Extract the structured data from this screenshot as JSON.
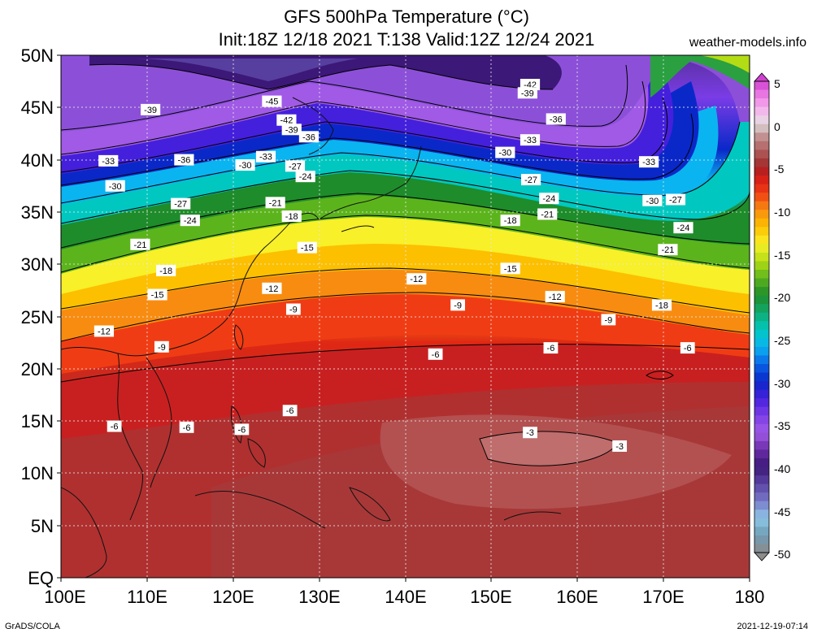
{
  "header": {
    "title_line1": "GFS 500hPa Temperature (°C)",
    "title_line2": "Init:18Z 12/18 2021 T:138 Valid:12Z 12/24 2021",
    "site": "weather-models.info"
  },
  "footer": {
    "credit": "GrADS/COLA",
    "timestamp": "2021-12-19-07:14"
  },
  "map": {
    "lat_labels": [
      "50N",
      "45N",
      "40N",
      "35N",
      "30N",
      "25N",
      "20N",
      "15N",
      "10N",
      "5N",
      "EQ"
    ],
    "lon_labels": [
      "100E",
      "110E",
      "120E",
      "130E",
      "140E",
      "150E",
      "160E",
      "170E",
      "180"
    ],
    "lat_range": [
      0,
      50
    ],
    "lon_range": [
      100,
      180
    ],
    "contour_labels": [
      {
        "text": "-45",
        "lon": 124.5,
        "lat": 45.6
      },
      {
        "text": "-42",
        "lon": 154.5,
        "lat": 47.2
      },
      {
        "text": "-39",
        "lon": 154.2,
        "lat": 46.4
      },
      {
        "text": "-39",
        "lon": 110.4,
        "lat": 44.8
      },
      {
        "text": "-42",
        "lon": 126.2,
        "lat": 43.8
      },
      {
        "text": "-39",
        "lon": 126.8,
        "lat": 42.9
      },
      {
        "text": "-36",
        "lon": 128.8,
        "lat": 42.2
      },
      {
        "text": "-36",
        "lon": 157.5,
        "lat": 43.9
      },
      {
        "text": "-33",
        "lon": 154.5,
        "lat": 41.9
      },
      {
        "text": "-33",
        "lon": 123.8,
        "lat": 40.3
      },
      {
        "text": "-30",
        "lon": 151.6,
        "lat": 40.7
      },
      {
        "text": "-33",
        "lon": 105.5,
        "lat": 39.9
      },
      {
        "text": "-36",
        "lon": 114.3,
        "lat": 40.0
      },
      {
        "text": "-30",
        "lon": 121.4,
        "lat": 39.5
      },
      {
        "text": "-27",
        "lon": 127.2,
        "lat": 39.4
      },
      {
        "text": "-24",
        "lon": 128.4,
        "lat": 38.4
      },
      {
        "text": "-33",
        "lon": 168.3,
        "lat": 39.8
      },
      {
        "text": "-27",
        "lon": 154.6,
        "lat": 38.1
      },
      {
        "text": "-30",
        "lon": 106.3,
        "lat": 37.5
      },
      {
        "text": "-24",
        "lon": 156.7,
        "lat": 36.3
      },
      {
        "text": "-30",
        "lon": 168.7,
        "lat": 36.1
      },
      {
        "text": "-27",
        "lon": 171.4,
        "lat": 36.2
      },
      {
        "text": "-27",
        "lon": 113.9,
        "lat": 35.8
      },
      {
        "text": "-21",
        "lon": 124.9,
        "lat": 35.9
      },
      {
        "text": "-21",
        "lon": 156.5,
        "lat": 34.8
      },
      {
        "text": "-18",
        "lon": 126.8,
        "lat": 34.6
      },
      {
        "text": "-18",
        "lon": 152.2,
        "lat": 34.2
      },
      {
        "text": "-24",
        "lon": 115.0,
        "lat": 34.2
      },
      {
        "text": "-24",
        "lon": 172.3,
        "lat": 33.5
      },
      {
        "text": "-21",
        "lon": 109.2,
        "lat": 31.9
      },
      {
        "text": "-15",
        "lon": 128.6,
        "lat": 31.6
      },
      {
        "text": "-21",
        "lon": 170.5,
        "lat": 31.4
      },
      {
        "text": "-18",
        "lon": 112.2,
        "lat": 29.4
      },
      {
        "text": "-15",
        "lon": 152.2,
        "lat": 29.6
      },
      {
        "text": "-12",
        "lon": 141.3,
        "lat": 28.6
      },
      {
        "text": "-12",
        "lon": 124.5,
        "lat": 27.7
      },
      {
        "text": "-15",
        "lon": 111.2,
        "lat": 27.1
      },
      {
        "text": "-12",
        "lon": 157.4,
        "lat": 26.9
      },
      {
        "text": "-9",
        "lon": 146.1,
        "lat": 26.1
      },
      {
        "text": "-9",
        "lon": 127.0,
        "lat": 25.7
      },
      {
        "text": "-18",
        "lon": 169.8,
        "lat": 26.1
      },
      {
        "text": "-9",
        "lon": 163.6,
        "lat": 24.7
      },
      {
        "text": "-12",
        "lon": 105.0,
        "lat": 23.6
      },
      {
        "text": "-9",
        "lon": 111.7,
        "lat": 22.1
      },
      {
        "text": "-6",
        "lon": 143.5,
        "lat": 21.4
      },
      {
        "text": "-6",
        "lon": 156.9,
        "lat": 22.0
      },
      {
        "text": "-6",
        "lon": 172.8,
        "lat": 22.0
      },
      {
        "text": "-6",
        "lon": 126.6,
        "lat": 16.0
      },
      {
        "text": "-6",
        "lon": 106.2,
        "lat": 14.5
      },
      {
        "text": "-6",
        "lon": 114.6,
        "lat": 14.4
      },
      {
        "text": "-6",
        "lon": 121.0,
        "lat": 14.2
      },
      {
        "text": "-3",
        "lon": 154.5,
        "lat": 13.9
      },
      {
        "text": "-3",
        "lon": 164.9,
        "lat": 12.6
      }
    ]
  },
  "colorbar": {
    "tick_labels": [
      "5",
      "0",
      "-5",
      "-10",
      "-15",
      "-20",
      "-25",
      "-30",
      "-35",
      "-40",
      "-45",
      "-50"
    ],
    "range": [
      -50,
      5
    ],
    "step": 1,
    "stops": [
      {
        "v": 5,
        "c": "#d040d0"
      },
      {
        "v": 3,
        "c": "#f088e8"
      },
      {
        "v": 1,
        "c": "#f4c8ec"
      },
      {
        "v": 0,
        "c": "#dcdcdc"
      },
      {
        "v": -1,
        "c": "#c8a0a0"
      },
      {
        "v": -3,
        "c": "#b06060"
      },
      {
        "v": -5,
        "c": "#a02828"
      },
      {
        "v": -6,
        "c": "#d01818"
      },
      {
        "v": -8,
        "c": "#f03c14"
      },
      {
        "v": -10,
        "c": "#f88c10"
      },
      {
        "v": -12,
        "c": "#fcc000"
      },
      {
        "v": -14,
        "c": "#f8f028"
      },
      {
        "v": -16,
        "c": "#b4dc14"
      },
      {
        "v": -18,
        "c": "#5cb41c"
      },
      {
        "v": -20,
        "c": "#1e8c2a"
      },
      {
        "v": -22,
        "c": "#10aa6e"
      },
      {
        "v": -24,
        "c": "#00c8c0"
      },
      {
        "v": -26,
        "c": "#0ab4f0"
      },
      {
        "v": -28,
        "c": "#0a64e6"
      },
      {
        "v": -30,
        "c": "#0a28c8"
      },
      {
        "v": -32,
        "c": "#4420dc"
      },
      {
        "v": -34,
        "c": "#7a3ce6"
      },
      {
        "v": -36,
        "c": "#a05ae6"
      },
      {
        "v": -38,
        "c": "#6a2ca8"
      },
      {
        "v": -40,
        "c": "#3c1878"
      },
      {
        "v": -42,
        "c": "#5a44a4"
      },
      {
        "v": -44,
        "c": "#7878c8"
      },
      {
        "v": -46,
        "c": "#8ec8e8"
      },
      {
        "v": -48,
        "c": "#6e9cb4"
      },
      {
        "v": -50,
        "c": "#8c8c8c"
      }
    ]
  }
}
